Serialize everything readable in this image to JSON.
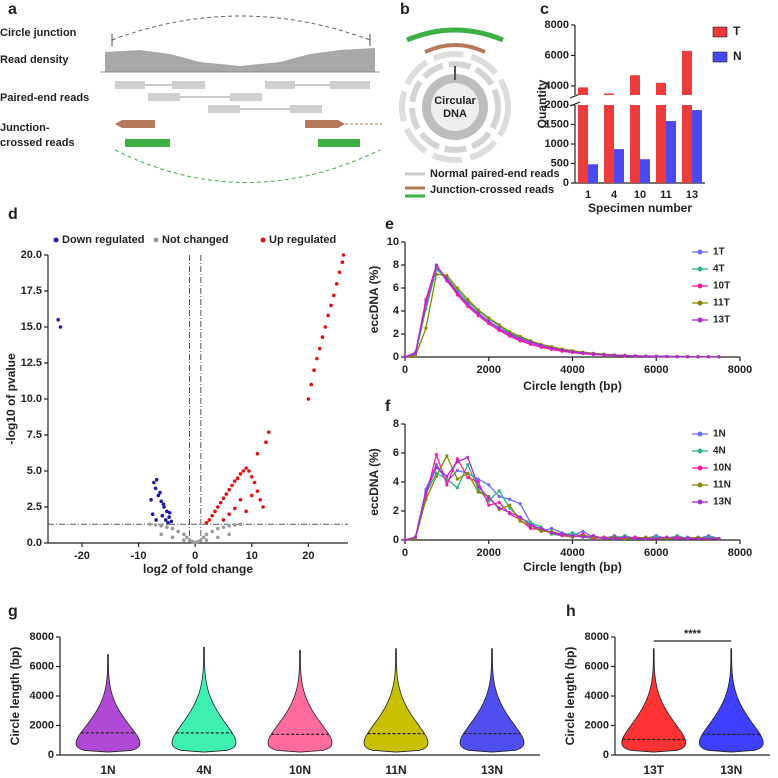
{
  "panel_labels": [
    "a",
    "b",
    "c",
    "d",
    "e",
    "f",
    "g",
    "h"
  ],
  "diagram_a": {
    "labels": [
      "Circle junction",
      "Read density",
      "Paired-end reads",
      "Junction-",
      "crossed reads"
    ]
  },
  "diagram_b": {
    "center": [
      "Circular",
      "DNA"
    ],
    "legend": [
      "Normal paired-end reads",
      "Junction-crossed reads"
    ]
  },
  "chart_data": [
    {
      "type": "bar",
      "categories": [
        "1",
        "4",
        "10",
        "11",
        "13"
      ],
      "series": [
        {
          "name": "T",
          "color": "#ee3b3b",
          "values": [
            3900,
            3500,
            4700,
            4200,
            6300
          ]
        },
        {
          "name": "N",
          "color": "#4a4af0",
          "values": [
            480,
            870,
            610,
            1590,
            1870
          ]
        }
      ],
      "ylim": [
        0,
        2000
      ],
      "yticks": [
        0,
        500,
        1000,
        1500,
        2000
      ],
      "ylim_upper": [
        3400,
        8000
      ],
      "yticks_upper": [
        4000,
        6000,
        8000
      ],
      "ylabel": "Quantity",
      "xlabel": "Specimen number",
      "legend": "right"
    },
    {
      "type": "scatter",
      "series": [
        {
          "name": "Down regulated",
          "color": "#1a1aa6",
          "x": [
            -24.2,
            -23.8,
            -4.2,
            -4.6,
            -5.0,
            -5.5,
            -6.0,
            -6.5,
            -7.0,
            -7.3,
            -6.8,
            -6.2,
            -5.8,
            -5.2,
            -4.8,
            -7.8,
            -7.5,
            -6.9,
            -5.6,
            -4.5
          ],
          "values": [
            15.5,
            15.0,
            1.5,
            1.8,
            2.2,
            2.5,
            2.9,
            3.3,
            3.8,
            4.2,
            4.4,
            3.5,
            1.9,
            1.6,
            1.4,
            3.0,
            2.0,
            1.6,
            2.7,
            2.1
          ]
        },
        {
          "name": "Not changed",
          "color": "#9a9a9a",
          "x": [
            -8,
            -7,
            -6,
            -5,
            -4,
            -3,
            -2,
            -1.5,
            -1,
            -0.5,
            0,
            0.5,
            1,
            1.5,
            2,
            3,
            4,
            5,
            6,
            7,
            8,
            -6,
            -4,
            -2,
            2,
            4,
            6
          ],
          "values": [
            1.3,
            1.25,
            1.2,
            1.1,
            1.0,
            0.8,
            0.6,
            0.4,
            0.2,
            0.1,
            0.05,
            0.1,
            0.2,
            0.4,
            0.6,
            0.8,
            1.0,
            1.1,
            1.2,
            1.25,
            1.3,
            0.6,
            0.4,
            0.2,
            0.2,
            0.4,
            0.6
          ]
        },
        {
          "name": "Up regulated",
          "color": "#e01010",
          "x": [
            2,
            2.5,
            3,
            3.5,
            4,
            4.5,
            5,
            5.5,
            6,
            6.5,
            7,
            7.5,
            8,
            8.5,
            9,
            9.5,
            10,
            10.5,
            11,
            11.5,
            12,
            12.5,
            13,
            5,
            6,
            7,
            8,
            9,
            10,
            11,
            20,
            20.5,
            21,
            21.5,
            22,
            22.5,
            23,
            23.5,
            24,
            24.5,
            25,
            25.5,
            26,
            26.2
          ],
          "values": [
            1.4,
            1.6,
            1.9,
            2.2,
            2.5,
            2.8,
            3.1,
            3.4,
            3.7,
            4.0,
            4.3,
            4.5,
            4.8,
            5.0,
            5.2,
            5.0,
            4.6,
            4.2,
            3.6,
            3.0,
            2.5,
            7.0,
            7.7,
            1.6,
            2.0,
            2.4,
            3.0,
            2.2,
            3.3,
            6.2,
            10,
            11,
            12,
            12.8,
            13.5,
            14.3,
            15,
            15.8,
            16.5,
            17.2,
            18,
            18.8,
            19.5,
            20
          ]
        }
      ],
      "xlim": [
        -26,
        27
      ],
      "xticks": [
        -20,
        -10,
        0,
        10,
        20
      ],
      "ylim": [
        0,
        20
      ],
      "yticks": [
        {
          "value": 0,
          "label": "0.0"
        },
        2.5,
        {
          "value": 5,
          "label": "5.0"
        },
        7.5,
        {
          "value": 10,
          "label": "10.0"
        },
        12.5,
        {
          "value": 15,
          "label": "15.0"
        },
        17.5,
        {
          "value": 20,
          "label": "20.0"
        }
      ],
      "threshold_x": [
        -1,
        1
      ],
      "threshold_y": 1.3,
      "xlabel": "log2 of fold change",
      "ylabel": "-log10 of pvalue",
      "legend": "top"
    },
    {
      "type": "line",
      "x": [
        0,
        250,
        500,
        750,
        1000,
        1250,
        1500,
        1750,
        2000,
        2250,
        2500,
        2750,
        3000,
        3250,
        3500,
        3750,
        4000,
        4250,
        4500,
        4750,
        5000,
        5250,
        5500,
        5750,
        6000,
        6250,
        6500,
        6750,
        7000,
        7250,
        7500
      ],
      "series": [
        {
          "name": "1T",
          "color": "#6b6bff",
          "values": [
            0,
            0.4,
            4.8,
            7.8,
            6.6,
            5.5,
            4.5,
            3.7,
            3.0,
            2.4,
            1.9,
            1.5,
            1.2,
            0.9,
            0.7,
            0.55,
            0.4,
            0.3,
            0.25,
            0.18,
            0.14,
            0.1,
            0.08,
            0.06,
            0.05,
            0.04,
            0.03,
            0.02,
            0.02,
            0.02,
            0.01
          ]
        },
        {
          "name": "4T",
          "color": "#2bb58a",
          "values": [
            0,
            0.2,
            4.2,
            7.6,
            6.9,
            5.8,
            4.8,
            4.0,
            3.3,
            2.7,
            2.1,
            1.7,
            1.4,
            1.1,
            0.85,
            0.65,
            0.5,
            0.4,
            0.3,
            0.22,
            0.17,
            0.13,
            0.1,
            0.08,
            0.07,
            0.05,
            0.04,
            0.03,
            0.03,
            0.02,
            0.02
          ]
        },
        {
          "name": "10T",
          "color": "#ff1a9e",
          "values": [
            0,
            0.3,
            5.0,
            8.0,
            6.7,
            5.4,
            4.4,
            3.6,
            2.9,
            2.3,
            1.8,
            1.4,
            1.1,
            0.85,
            0.65,
            0.5,
            0.38,
            0.3,
            0.22,
            0.17,
            0.13,
            0.1,
            0.08,
            0.06,
            0.05,
            0.04,
            0.03,
            0.02,
            0.02,
            0.01,
            0.01
          ]
        },
        {
          "name": "11T",
          "color": "#8a8a00",
          "values": [
            0,
            0.1,
            2.5,
            7.2,
            7.1,
            6.0,
            5.0,
            4.1,
            3.4,
            2.8,
            2.2,
            1.8,
            1.4,
            1.1,
            0.9,
            0.7,
            0.55,
            0.42,
            0.32,
            0.25,
            0.18,
            0.14,
            0.11,
            0.09,
            0.07,
            0.05,
            0.04,
            0.03,
            0.03,
            0.02,
            0.02
          ]
        },
        {
          "name": "13T",
          "color": "#b02bd1",
          "values": [
            0,
            0.3,
            4.6,
            7.9,
            6.8,
            5.6,
            4.6,
            3.8,
            3.1,
            2.5,
            2.0,
            1.6,
            1.3,
            1.0,
            0.78,
            0.6,
            0.46,
            0.36,
            0.28,
            0.2,
            0.15,
            0.12,
            0.09,
            0.07,
            0.06,
            0.05,
            0.04,
            0.03,
            0.02,
            0.02,
            0.01
          ]
        }
      ],
      "xlim": [
        0,
        8000
      ],
      "xticks": [
        0,
        2000,
        4000,
        6000,
        8000
      ],
      "ylim": [
        0,
        10
      ],
      "yticks": [
        0,
        2,
        4,
        6,
        8,
        10
      ],
      "xlabel": "Circle length (bp)",
      "ylabel": "eccDNA (%)",
      "legend": "right"
    },
    {
      "type": "line",
      "x": [
        0,
        250,
        500,
        750,
        1000,
        1250,
        1500,
        1750,
        2000,
        2250,
        2500,
        2750,
        3000,
        3250,
        3500,
        3750,
        4000,
        4250,
        4500,
        4750,
        5000,
        5250,
        5500,
        5750,
        6000,
        6250,
        6500,
        6750,
        7000,
        7250,
        7500
      ],
      "series": [
        {
          "name": "1N",
          "color": "#6b6bff",
          "values": [
            0,
            0.2,
            3.5,
            5.2,
            4.0,
            4.8,
            4.6,
            4.2,
            3.8,
            3.0,
            2.8,
            2.5,
            1.2,
            0.6,
            0.8,
            0.5,
            0.3,
            0.6,
            0.2,
            0.1,
            0.3,
            0.1,
            0.2,
            0.1,
            0.3,
            0.1,
            0.1,
            0.2,
            0.1,
            0.3,
            0.1
          ]
        },
        {
          "name": "4N",
          "color": "#2bb58a",
          "values": [
            0,
            0.1,
            3.2,
            4.6,
            4.2,
            3.6,
            5.2,
            3.5,
            2.7,
            3.4,
            2.2,
            1.5,
            1.2,
            0.9,
            0.4,
            0.3,
            0.5,
            0.2,
            0.1,
            0.2,
            0.1,
            0.3,
            0.1,
            0.1,
            0.2,
            0.1,
            0.3,
            0.1,
            0.1,
            0.2,
            0.1
          ]
        },
        {
          "name": "10N",
          "color": "#ff1a9e",
          "values": [
            0,
            0.2,
            3.0,
            5.9,
            3.8,
            5.6,
            4.3,
            4.0,
            2.4,
            2.6,
            1.8,
            1.4,
            0.8,
            0.7,
            0.5,
            0.3,
            0.2,
            0.4,
            0.1,
            0.2,
            0.1,
            0.1,
            0.2,
            0.1,
            0.1,
            0.1,
            0.2,
            0.1,
            0.1,
            0.1,
            0.1
          ]
        },
        {
          "name": "11N",
          "color": "#8a8a00",
          "values": [
            0,
            0.1,
            2.8,
            4.4,
            5.8,
            4.2,
            4.6,
            3.3,
            3.0,
            2.1,
            2.4,
            1.3,
            1.0,
            0.6,
            0.6,
            0.4,
            0.2,
            0.3,
            0.2,
            0.1,
            0.2,
            0.1,
            0.1,
            0.2,
            0.1,
            0.1,
            0.1,
            0.1,
            0.2,
            0.1,
            0.1
          ]
        },
        {
          "name": "13N",
          "color": "#b02bd1",
          "values": [
            0,
            0.2,
            3.3,
            5.0,
            4.4,
            5.4,
            5.7,
            3.7,
            2.9,
            2.2,
            1.9,
            1.6,
            1.0,
            0.8,
            0.5,
            0.4,
            0.3,
            0.2,
            0.3,
            0.1,
            0.1,
            0.2,
            0.1,
            0.1,
            0.1,
            0.2,
            0.1,
            0.1,
            0.1,
            0.1,
            0.1
          ]
        }
      ],
      "xlim": [
        0,
        8000
      ],
      "xticks": [
        0,
        2000,
        4000,
        6000,
        8000
      ],
      "ylim": [
        0,
        8
      ],
      "yticks": [
        0,
        2,
        4,
        6,
        8
      ],
      "xlabel": "Circle length (bp)",
      "ylabel": "eccDNA (%)",
      "legend": "right"
    },
    {
      "type": "violin",
      "categories": [
        "1N",
        "4N",
        "10N",
        "11N",
        "13N"
      ],
      "colors": [
        "#b04ad6",
        "#40f0b0",
        "#ff6b9a",
        "#c8c000",
        "#4f4ff0"
      ],
      "minima": [
        200,
        200,
        200,
        200,
        200
      ],
      "medians": [
        1500,
        1500,
        1400,
        1450,
        1450
      ],
      "maxima": [
        6800,
        7300,
        7100,
        7200,
        7200
      ],
      "ylim": [
        0,
        8000
      ],
      "yticks": [
        0,
        2000,
        4000,
        6000,
        8000
      ],
      "ylabel": "Circle length (bp)"
    },
    {
      "type": "violin",
      "categories": [
        "13T",
        "13N"
      ],
      "colors": [
        "#ff3333",
        "#3f3fff"
      ],
      "minima": [
        200,
        200
      ],
      "medians": [
        1050,
        1400
      ],
      "maxima": [
        7200,
        7200
      ],
      "ylim": [
        0,
        8000
      ],
      "yticks": [
        0,
        2000,
        4000,
        6000,
        8000
      ],
      "ylabel": "Circle length (bp)",
      "annotation": "****"
    }
  ]
}
